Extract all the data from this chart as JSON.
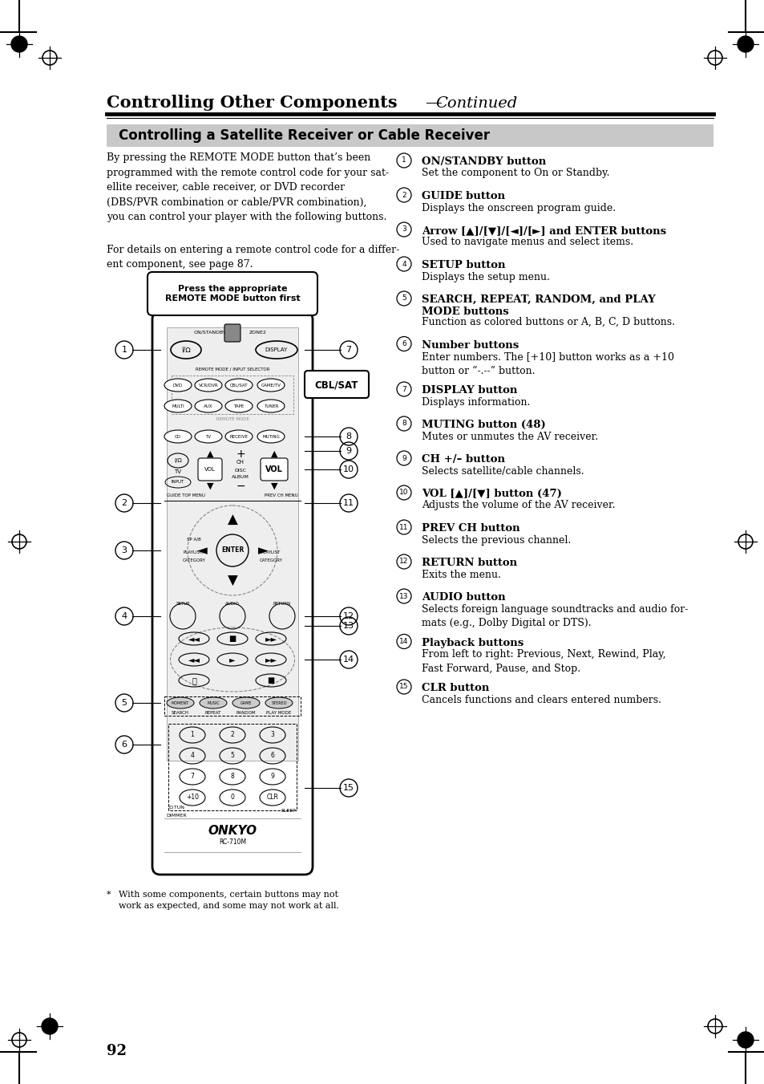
{
  "page_bg": "#ffffff",
  "section_title_display": "Controlling a Satellite Receiver or Cable Receiver",
  "body_text_1": "By pressing the REMOTE MODE button that’s been\nprogrammed with the remote control code for your sat-\nellite receiver, cable receiver, or DVD recorder\n(DBS/PVR combination or cable/PVR combination),\nyou can control your player with the following buttons.",
  "body_text_2": "For details on entering a remote control code for a differ-\nent component, see page 87.",
  "callout_box": "Press the appropriate\nREMOTE MODE button first",
  "items": [
    {
      "num": "1",
      "title": "ON/STANDBY button",
      "desc": "Set the component to On or Standby.",
      "title_lines": 1,
      "desc_lines": 1
    },
    {
      "num": "2",
      "title": "GUIDE button",
      "desc": "Displays the onscreen program guide.",
      "title_lines": 1,
      "desc_lines": 1
    },
    {
      "num": "3",
      "title": "Arrow [▲]/[▼]/[◄]/[►] and ENTER buttons",
      "desc": "Used to navigate menus and select items.",
      "title_lines": 1,
      "desc_lines": 1
    },
    {
      "num": "4",
      "title": "SETUP button",
      "desc": "Displays the setup menu.",
      "title_lines": 1,
      "desc_lines": 1
    },
    {
      "num": "5",
      "title": "SEARCH, REPEAT, RANDOM, and PLAY\nMODE buttons",
      "desc": "Function as colored buttons or A, B, C, D buttons.",
      "title_lines": 2,
      "desc_lines": 1
    },
    {
      "num": "6",
      "title": "Number buttons",
      "desc": "Enter numbers. The [+10] button works as a +10\nbutton or “-.--” button.",
      "title_lines": 1,
      "desc_lines": 2
    },
    {
      "num": "7",
      "title": "DISPLAY button",
      "desc": "Displays information.",
      "title_lines": 1,
      "desc_lines": 1
    },
    {
      "num": "8",
      "title": "MUTING button (48)",
      "desc": "Mutes or unmutes the AV receiver.",
      "title_lines": 1,
      "desc_lines": 1
    },
    {
      "num": "9",
      "title": "CH +/– button",
      "desc": "Selects satellite/cable channels.",
      "title_lines": 1,
      "desc_lines": 1
    },
    {
      "num": "10",
      "title": "VOL [▲]/[▼] button (47)",
      "desc": "Adjusts the volume of the AV receiver.",
      "title_lines": 1,
      "desc_lines": 1
    },
    {
      "num": "11",
      "title": "PREV CH button",
      "desc": "Selects the previous channel.",
      "title_lines": 1,
      "desc_lines": 1
    },
    {
      "num": "12",
      "title": "RETURN button",
      "desc": "Exits the menu.",
      "title_lines": 1,
      "desc_lines": 1
    },
    {
      "num": "13",
      "title": "AUDIO button",
      "desc": "Selects foreign language soundtracks and audio for-\nmats (e.g., Dolby Digital or DTS).",
      "title_lines": 1,
      "desc_lines": 2
    },
    {
      "num": "14",
      "title": "Playback buttons",
      "desc": "From left to right: Previous, Next, Rewind, Play,\nFast Forward, Pause, and Stop.",
      "title_lines": 1,
      "desc_lines": 2
    },
    {
      "num": "15",
      "title": "CLR button",
      "desc": "Cancels functions and clears entered numbers.",
      "title_lines": 1,
      "desc_lines": 1
    }
  ],
  "footnote_star": "* ",
  "footnote_text": "With some components, certain buttons may not\nwork as expected, and some may not work at all.",
  "page_number": "92"
}
